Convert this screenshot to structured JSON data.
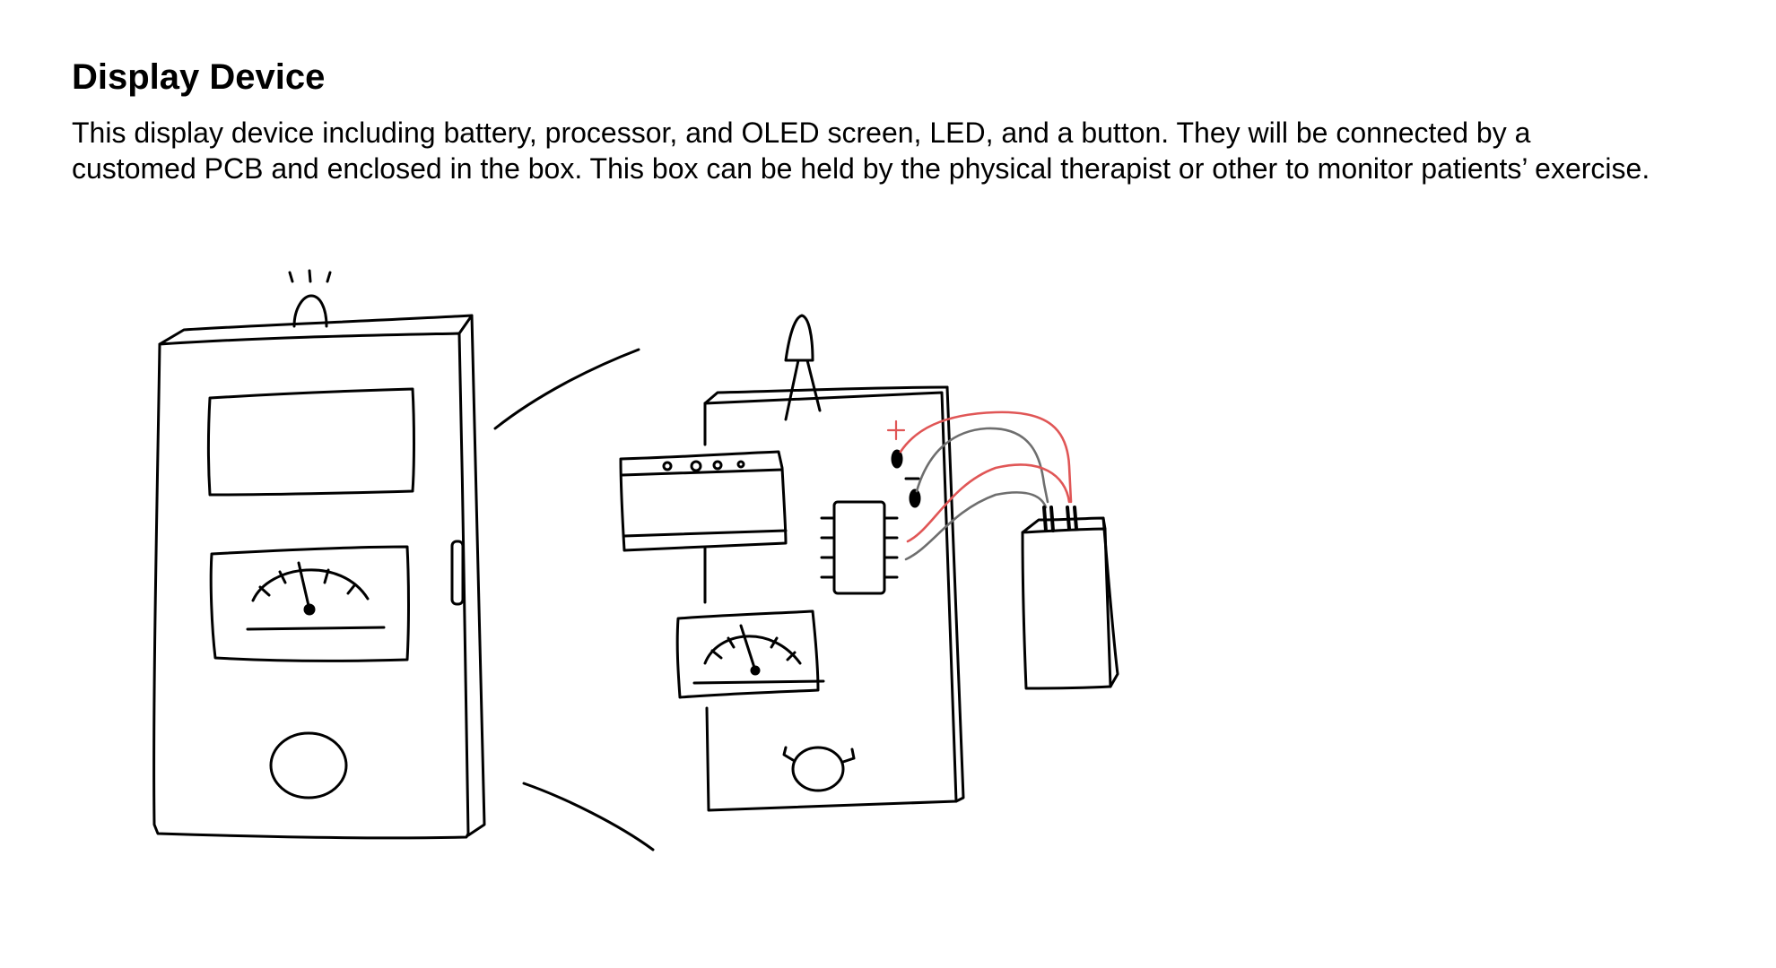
{
  "document": {
    "title": "Display Device",
    "paragraph_lines": [
      "This display device including battery, processor, and OLED screen, LED, and a button. They will be connected by a",
      "customed PCB and enclosed in the box. This box can be held by the physical therapist or other to monitor patients’ exercise."
    ]
  },
  "sketch": {
    "colors": {
      "line": "#000000",
      "positive_wire": "#e05656",
      "negative_wire": "#6e6e6e"
    }
  }
}
